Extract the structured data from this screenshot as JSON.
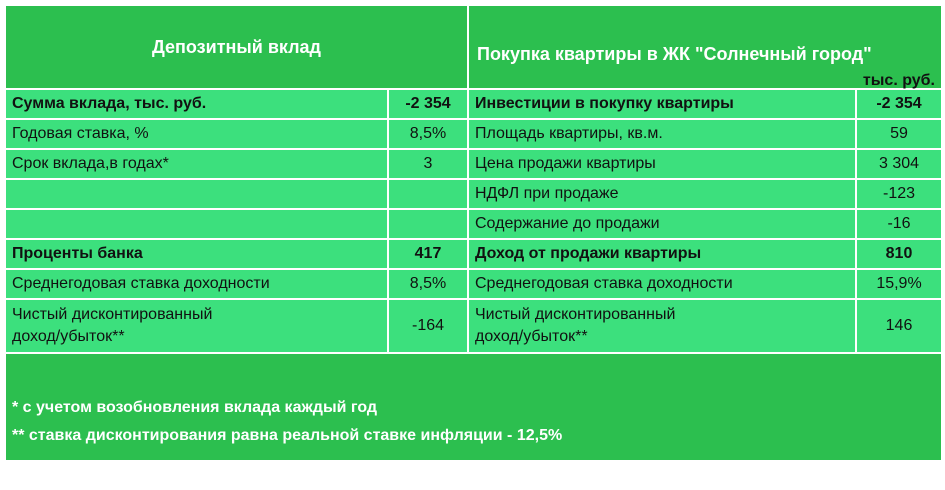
{
  "header": {
    "left_title": "Депозитный вклад",
    "right_title": "Покупка квартиры в ЖК \"Солнечный город\"",
    "unit": "тыс. руб."
  },
  "rows": [
    {
      "l_label": "Сумма вклада, тыс. руб.",
      "l_value": "-2 354",
      "r_label": "Инвестиции в покупку квартиры",
      "r_value": "-2 354"
    },
    {
      "l_label": "Годовая ставка, %",
      "l_value": "8,5%",
      "r_label": "Площадь квартиры, кв.м.",
      "r_value": "59"
    },
    {
      "l_label": "Срок вклада,в годах*",
      "l_value": "3",
      "r_label": "Цена продажи квартиры",
      "r_value": "3 304"
    },
    {
      "l_label": "",
      "l_value": "",
      "r_label": "НДФЛ при продаже",
      "r_value": "-123"
    },
    {
      "l_label": "",
      "l_value": "",
      "r_label": "Содержание до продажи",
      "r_value": "-16"
    },
    {
      "l_label": "Проценты банка",
      "l_value": "417",
      "r_label": "Доход от продажи квартиры",
      "r_value": "810"
    },
    {
      "l_label": "Среднегодовая ставка доходности",
      "l_value": "8,5%",
      "r_label": "Среднегодовая ставка доходности",
      "r_value": "15,9%"
    }
  ],
  "last_row": {
    "l_label_line1": "Чистый дисконтированный",
    "l_label_line2": "доход/убыток**",
    "l_value": "-164",
    "r_label_line1": "Чистый дисконтированный",
    "r_label_line2": "доход/убыток**",
    "r_value": "146"
  },
  "notes": {
    "note1": "* с учетом возобновления вклада каждый год",
    "note2": "** ставка дисконтирования равна реальной ставке инфляции - 12,5%"
  },
  "colors": {
    "header_green": "#2cbf4f",
    "row_green": "#3ce07d"
  }
}
